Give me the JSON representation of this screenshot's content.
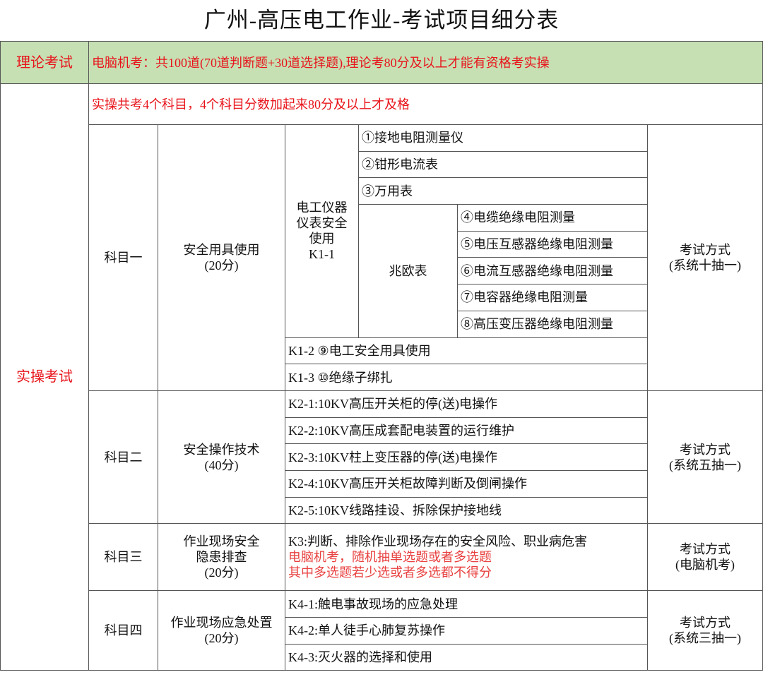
{
  "title": "广州-高压电工作业-考试项目细分表",
  "theory": {
    "label": "理论考试",
    "desc": "电脑机考：共100道(70道判断题+30道选择题),理论考80分及以上才能有资格考实操"
  },
  "practice": {
    "label": "实操考试",
    "note": "实操共考4个科目，4个科目分数加起来80分及以上才及格"
  },
  "subjects": [
    {
      "name": "科目一",
      "topic_line1": "安全用具使用",
      "topic_line2": "(20分)",
      "group_label_line1": "电工仪器",
      "group_label_line2": "仪表安全",
      "group_label_line3": "使用",
      "group_label_line4": "K1-1",
      "items_top": [
        "①接地电阻测量仪",
        "②钳形电流表",
        "③万用表"
      ],
      "meter_label": "兆欧表",
      "meter_items": [
        "④电缆绝缘电阻测量",
        "⑤电压互感器绝缘电阻测量",
        "⑥电流互感器绝缘电阻测量",
        "⑦电容器绝缘电阻测量",
        "⑧高压变压器绝缘电阻测量"
      ],
      "items_bottom": [
        "K1-2 ⑨电工安全用具使用",
        "K1-3 ⑩绝缘子绑扎"
      ],
      "method_line1": "考试方式",
      "method_line2": "(系统十抽一)"
    },
    {
      "name": "科目二",
      "topic_line1": "安全操作技术",
      "topic_line2": "(40分)",
      "items": [
        "K2-1:10KV高压开关柜的停(送)电操作",
        "K2-2:10KV高压成套配电装置的运行维护",
        "K2-3:10KV柱上变压器的停(送)电操作",
        "K2-4:10KV高压开关柜故障判断及倒闸操作",
        "K2-5:10KV线路挂设、拆除保护接地线"
      ],
      "method_line1": "考试方式",
      "method_line2": "(系统五抽一)"
    },
    {
      "name": "科目三",
      "topic_line1": "作业现场安全",
      "topic_line2": "隐患排查",
      "topic_line3": "(20分)",
      "item": "K3:判断、排除作业现场存在的安全风险、职业病危害",
      "note1": "电脑机考，随机抽单选题或者多选题",
      "note2": "其中多选题若少选或者多选都不得分",
      "method_line1": "考试方式",
      "method_line2": "(电脑机考)"
    },
    {
      "name": "科目四",
      "topic_line1": "作业现场应急处置",
      "topic_line2": "(20分)",
      "items": [
        "K4-1:触电事故现场的应急处理",
        "K4-2:单人徒手心肺复苏操作",
        "K4-3:灭火器的选择和使用"
      ],
      "method_line1": "考试方式",
      "method_line2": "(系统三抽一)"
    }
  ],
  "colors": {
    "theory_bg": "#c6e0b4",
    "red_text": "#e8141b",
    "border": "#555555"
  }
}
